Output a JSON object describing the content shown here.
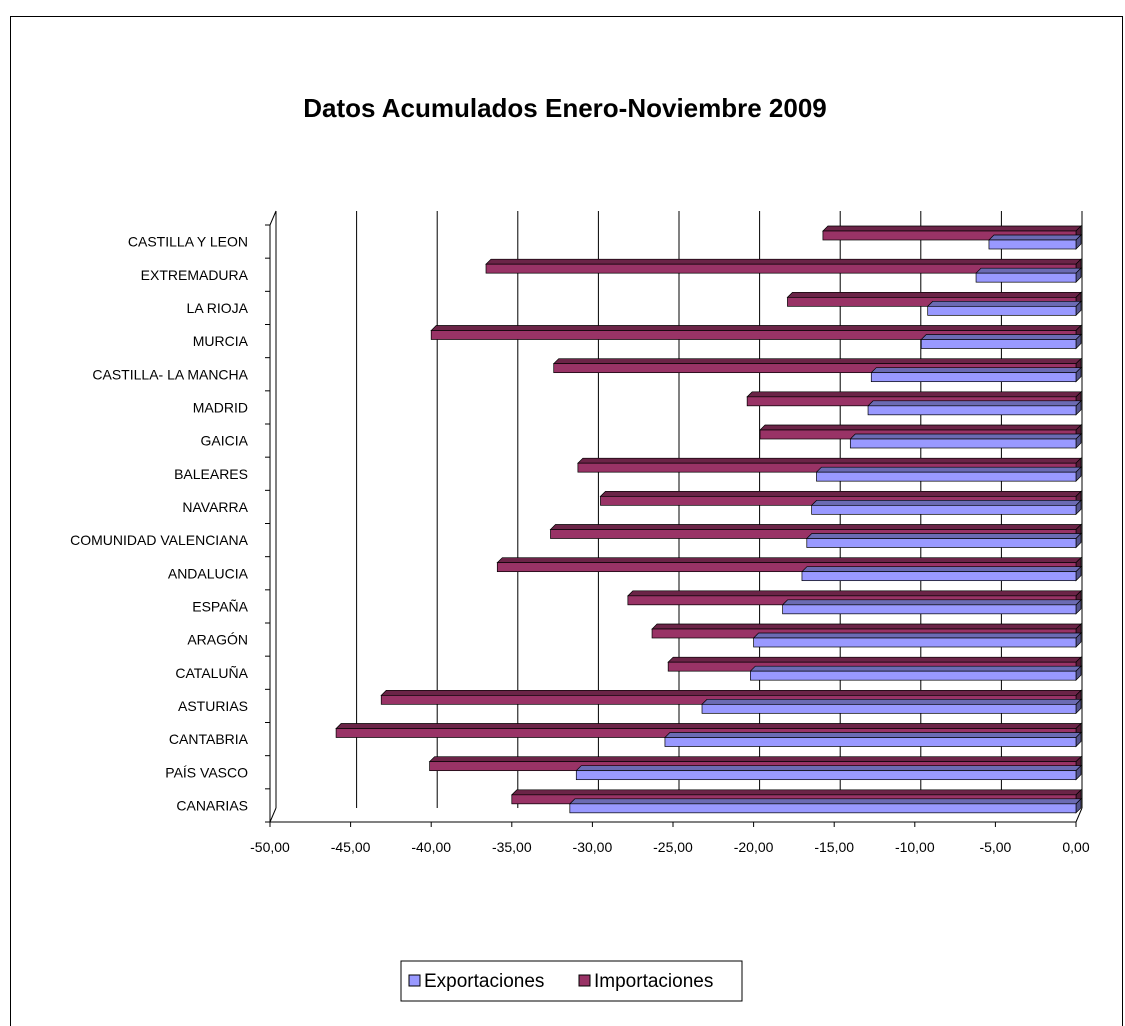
{
  "chart_data": {
    "type": "bar",
    "orientation": "horizontal",
    "title": "Datos Acumulados Enero-Noviembre 2009",
    "xlabel": "",
    "ylabel": "",
    "xlim": [
      -50,
      0
    ],
    "x_ticks": [
      "-50,00",
      "-45,00",
      "-40,00",
      "-35,00",
      "-30,00",
      "-25,00",
      "-20,00",
      "-15,00",
      "-10,00",
      "-5,00",
      "0,00"
    ],
    "x_tick_values": [
      -50,
      -45,
      -40,
      -35,
      -30,
      -25,
      -20,
      -15,
      -10,
      -5,
      0
    ],
    "grid": true,
    "legend_position": "bottom",
    "categories": [
      "CASTILLA Y LEON",
      "EXTREMADURA",
      "LA RIOJA",
      "MURCIA",
      "CASTILLA- LA MANCHA",
      "MADRID",
      "GAICIA",
      "BALEARES",
      "NAVARRA",
      "COMUNIDAD VALENCIANA",
      "ANDALUCIA",
      "ESPAÑA",
      "ARAGÓN",
      "CATALUÑA",
      "ASTURIAS",
      "CANTABRIA",
      "PAÍS VASCO",
      "CANARIAS"
    ],
    "series": [
      {
        "name": "Exportaciones",
        "color": "#9999ff",
        "values": [
          -5.4,
          -6.2,
          -9.2,
          -9.6,
          -12.7,
          -12.9,
          -14.0,
          -16.1,
          -16.4,
          -16.7,
          -17.0,
          -18.2,
          -20.0,
          -20.2,
          -23.2,
          -25.5,
          -31.0,
          -31.4
        ]
      },
      {
        "name": "Importaciones",
        "color": "#993366",
        "values": [
          -15.7,
          -36.6,
          -17.9,
          -40.0,
          -32.4,
          -20.4,
          -19.6,
          -30.9,
          -29.5,
          -32.6,
          -35.9,
          -27.8,
          -26.3,
          -25.3,
          -43.1,
          -45.9,
          -40.1,
          -35.0
        ]
      }
    ]
  }
}
